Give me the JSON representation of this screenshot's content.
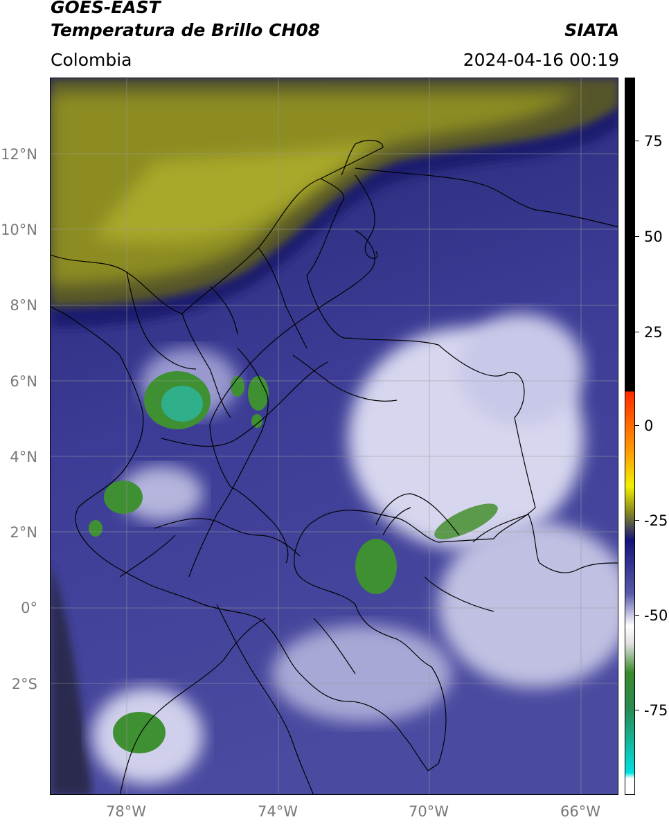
{
  "header": {
    "title_line1": "GOES-EAST",
    "title_line2": "Temperatura de Brillo CH08",
    "organization": "SIATA",
    "region": "Colombia",
    "datetime": "2024-04-16 00:19"
  },
  "map": {
    "lat_ticks": [
      "12°N",
      "10°N",
      "8°N",
      "6°N",
      "4°N",
      "2°N",
      "0°",
      "2°S"
    ],
    "lon_ticks": [
      "78°W",
      "74°W",
      "70°W",
      "66°W"
    ],
    "lon_range": [
      -80,
      -65
    ],
    "lat_range": [
      -5.2,
      14
    ]
  },
  "colorbar": {
    "ticks": [
      "75",
      "50",
      "25",
      "0",
      "-25",
      "-50",
      "-75"
    ],
    "colors": {
      "black": "#000000",
      "red": "#ff2a00",
      "orange": "#ff9a00",
      "yellow": "#f0f000",
      "olive": "#8a8a1e",
      "navy": "#141478",
      "blue": "#5a5aaa",
      "white": "#ffffff",
      "green": "#3a8a2a",
      "cyan": "#00e0e0"
    }
  }
}
